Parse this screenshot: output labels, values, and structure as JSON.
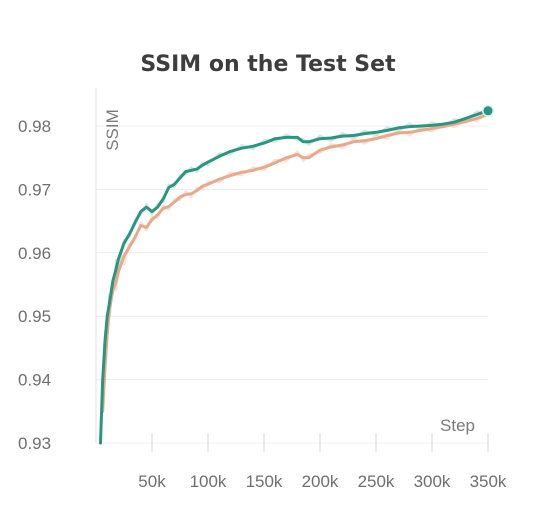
{
  "chart_data": {
    "type": "line",
    "title": "SSIM on the Test Set",
    "xlabel": "Step",
    "ylabel": "SSIM",
    "xlim": [
      0,
      350000
    ],
    "ylim": [
      0.93,
      0.983
    ],
    "x_ticks": [
      50000,
      100000,
      150000,
      200000,
      250000,
      300000,
      350000
    ],
    "x_tick_labels": [
      "50k",
      "100k",
      "150k",
      "200k",
      "250k",
      "300k",
      "350k"
    ],
    "y_ticks": [
      0.93,
      0.94,
      0.95,
      0.96,
      0.97,
      0.98
    ],
    "y_tick_labels": [
      "0.93",
      "0.94",
      "0.95",
      "0.96",
      "0.97",
      "0.98"
    ],
    "grid": true,
    "legend": "none",
    "series": [
      {
        "color": "#2a9580",
        "smoothed_color": "#cfe8e2",
        "x": [
          4000,
          6000,
          8000,
          10000,
          12000,
          15000,
          18000,
          20000,
          25000,
          30000,
          35000,
          40000,
          45000,
          50000,
          55000,
          60000,
          65000,
          70000,
          75000,
          80000,
          85000,
          90000,
          95000,
          100000,
          110000,
          120000,
          130000,
          140000,
          150000,
          160000,
          170000,
          180000,
          185000,
          190000,
          200000,
          210000,
          220000,
          230000,
          240000,
          250000,
          260000,
          270000,
          280000,
          290000,
          300000,
          310000,
          320000,
          330000,
          340000,
          350000
        ],
        "y": [
          0.93,
          0.94,
          0.946,
          0.95,
          0.952,
          0.9555,
          0.9575,
          0.959,
          0.9615,
          0.963,
          0.9648,
          0.9665,
          0.9672,
          0.9665,
          0.9672,
          0.9685,
          0.9703,
          0.9708,
          0.9718,
          0.9728,
          0.973,
          0.9732,
          0.9738,
          0.9743,
          0.9752,
          0.976,
          0.9765,
          0.9768,
          0.9773,
          0.978,
          0.9782,
          0.9782,
          0.9775,
          0.9775,
          0.978,
          0.9781,
          0.9784,
          0.9785,
          0.9788,
          0.979,
          0.9793,
          0.9797,
          0.9799,
          0.98,
          0.9801,
          0.9803,
          0.9806,
          0.9812,
          0.9818,
          0.9824
        ]
      },
      {
        "color": "#e8a98a",
        "smoothed_color": "#f6e1d6",
        "x": [
          6000,
          8000,
          10000,
          12000,
          15000,
          18000,
          20000,
          25000,
          30000,
          35000,
          40000,
          45000,
          50000,
          55000,
          60000,
          65000,
          70000,
          75000,
          80000,
          85000,
          90000,
          95000,
          100000,
          110000,
          120000,
          130000,
          140000,
          150000,
          160000,
          170000,
          180000,
          185000,
          190000,
          200000,
          210000,
          220000,
          230000,
          240000,
          250000,
          260000,
          270000,
          280000,
          290000,
          300000,
          310000,
          320000,
          330000,
          340000,
          350000
        ],
        "y": [
          0.935,
          0.942,
          0.947,
          0.951,
          0.954,
          0.9555,
          0.957,
          0.9595,
          0.961,
          0.9625,
          0.9643,
          0.964,
          0.9652,
          0.966,
          0.967,
          0.9673,
          0.968,
          0.9688,
          0.9692,
          0.9693,
          0.9698,
          0.9705,
          0.9708,
          0.9716,
          0.9722,
          0.9727,
          0.973,
          0.9735,
          0.9742,
          0.975,
          0.9755,
          0.975,
          0.975,
          0.9762,
          0.9767,
          0.977,
          0.9775,
          0.9777,
          0.978,
          0.9785,
          0.9789,
          0.979,
          0.9793,
          0.9796,
          0.9799,
          0.9803,
          0.9807,
          0.9812,
          0.9818
        ]
      }
    ]
  }
}
